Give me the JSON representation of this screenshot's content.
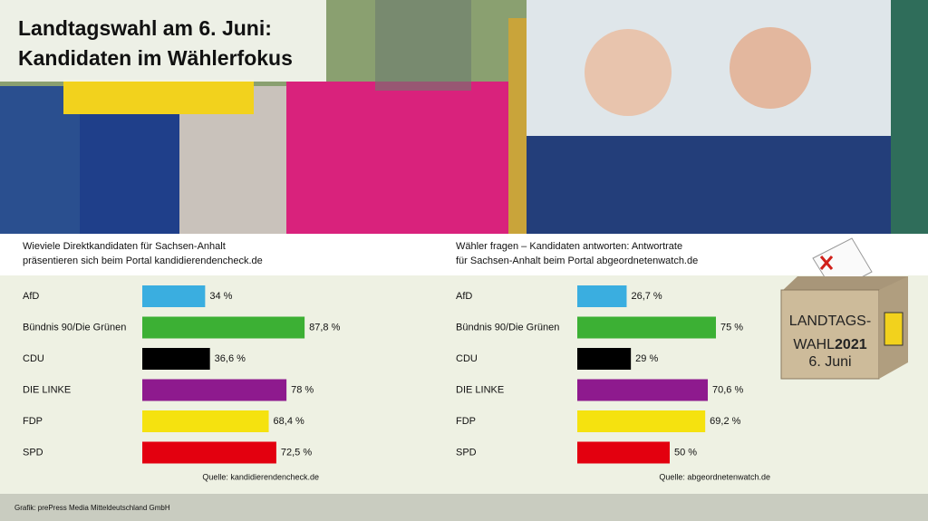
{
  "header": {
    "title_lines": [
      "Landtagswahl am 6. Juni:",
      "Kandidaten im Wählerfokus"
    ]
  },
  "chart_data": [
    {
      "type": "bar",
      "orientation": "horizontal",
      "title": [
        "Wieviele Direktkandidaten für Sachsen-Anhalt",
        "präsentieren sich beim Portal kandidierendencheck.de"
      ],
      "categories": [
        "AfD",
        "Bündnis 90/Die Grünen",
        "CDU",
        "DIE LINKE",
        "FDP",
        "SPD"
      ],
      "values": [
        34,
        87.8,
        36.6,
        78,
        68.4,
        72.5
      ],
      "value_labels": [
        "34 %",
        "87,8 %",
        "36,6 %",
        "78 %",
        "68,4 %",
        "72,5 %"
      ],
      "colors": [
        "#3aaee0",
        "#3cb034",
        "#000000",
        "#8e1a8e",
        "#f5e20f",
        "#e3000f"
      ],
      "xlim": [
        0,
        100
      ],
      "source": "Quelle: kandidierendencheck.de"
    },
    {
      "type": "bar",
      "orientation": "horizontal",
      "title": [
        "Wähler fragen – Kandidaten antworten: Antwortrate",
        "für Sachsen-Anhalt beim Portal abgeordnetenwatch.de"
      ],
      "categories": [
        "AfD",
        "Bündnis 90/Die Grünen",
        "CDU",
        "DIE LINKE",
        "FDP",
        "SPD"
      ],
      "values": [
        26.7,
        75,
        29,
        70.6,
        69.2,
        50
      ],
      "value_labels": [
        "26,7 %",
        "75 %",
        "29 %",
        "70,6 %",
        "69,2 %",
        "50 %"
      ],
      "colors": [
        "#3aaee0",
        "#3cb034",
        "#000000",
        "#8e1a8e",
        "#f5e20f",
        "#e3000f"
      ],
      "xlim": [
        0,
        100
      ],
      "source": "Quelle: abgeordnetenwatch.de"
    }
  ],
  "badge": {
    "lines": [
      "LANDTAGS-",
      "WAHL",
      "2021",
      "6. Juni"
    ]
  },
  "footer": "Grafik: prePress Media Mitteldeutschland GmbH"
}
